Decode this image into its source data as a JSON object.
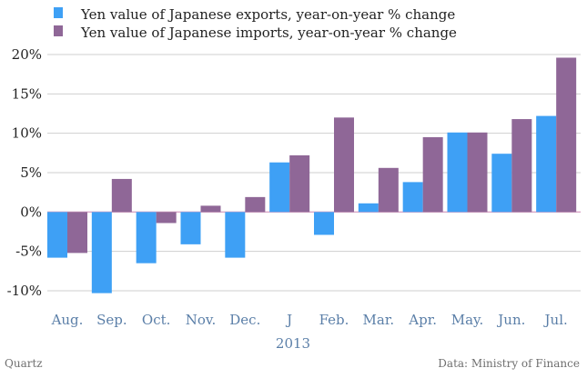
{
  "chart_data": {
    "type": "bar",
    "title": "",
    "xlabel": "",
    "ylabel": "",
    "ylim": [
      -12,
      21
    ],
    "yticks": [
      -10,
      -5,
      0,
      5,
      10,
      15,
      20
    ],
    "ytick_labels": [
      "-10%",
      "-5%",
      "0%",
      "5%",
      "10%",
      "15%",
      "20%"
    ],
    "grid": true,
    "legend_position": "top-left",
    "categories": [
      "Aug.",
      "Sep.",
      "Oct.",
      "Nov.",
      "Dec.",
      "J",
      "Feb.",
      "Mar.",
      "Apr.",
      "May.",
      "Jun.",
      "Jul."
    ],
    "secondary_label": "2013",
    "series": [
      {
        "name": "Yen value of Japanese exports, year-on-year % change",
        "color": "#3ea0f5",
        "values": [
          -5.8,
          -10.3,
          -6.5,
          -4.1,
          -5.8,
          6.3,
          -2.9,
          1.1,
          3.8,
          10.1,
          7.4,
          12.2
        ]
      },
      {
        "name": "Yen value of Japanese imports, year-on-year % change",
        "color": "#8f6797",
        "values": [
          -5.2,
          4.2,
          -1.4,
          0.8,
          1.9,
          7.2,
          12.0,
          5.6,
          9.5,
          10.1,
          11.8,
          19.6
        ]
      }
    ]
  },
  "footer": {
    "left": "Quartz",
    "right": "Data: Ministry of Finance"
  }
}
